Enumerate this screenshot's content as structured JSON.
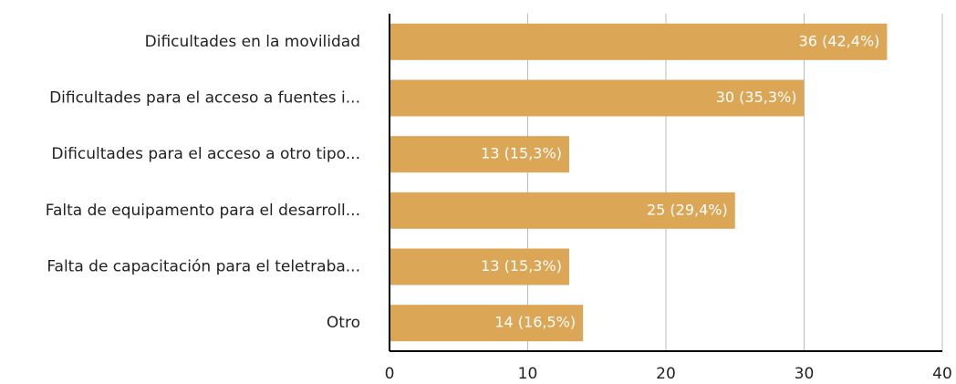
{
  "chart_data": {
    "type": "bar",
    "orientation": "horizontal",
    "categories": [
      "Dificultades en la movilidad",
      "Dificultades para el acceso a fuentes i...",
      "Dificultades para el acceso a otro tipo...",
      "Falta de equipamento para el desarroll...",
      "Falta de capacitación para el teletraba...",
      "Otro"
    ],
    "values": [
      36,
      30,
      13,
      25,
      13,
      14
    ],
    "value_labels": [
      "36 (42,4%)",
      "30 (35,3%)",
      "13 (15,3%)",
      "25 (29,4%)",
      "13 (15,3%)",
      "14 (16,5%)"
    ],
    "color": "#dba757",
    "xlim": [
      0,
      40
    ],
    "xticks": [
      0,
      10,
      20,
      30,
      40
    ],
    "grid": true
  }
}
